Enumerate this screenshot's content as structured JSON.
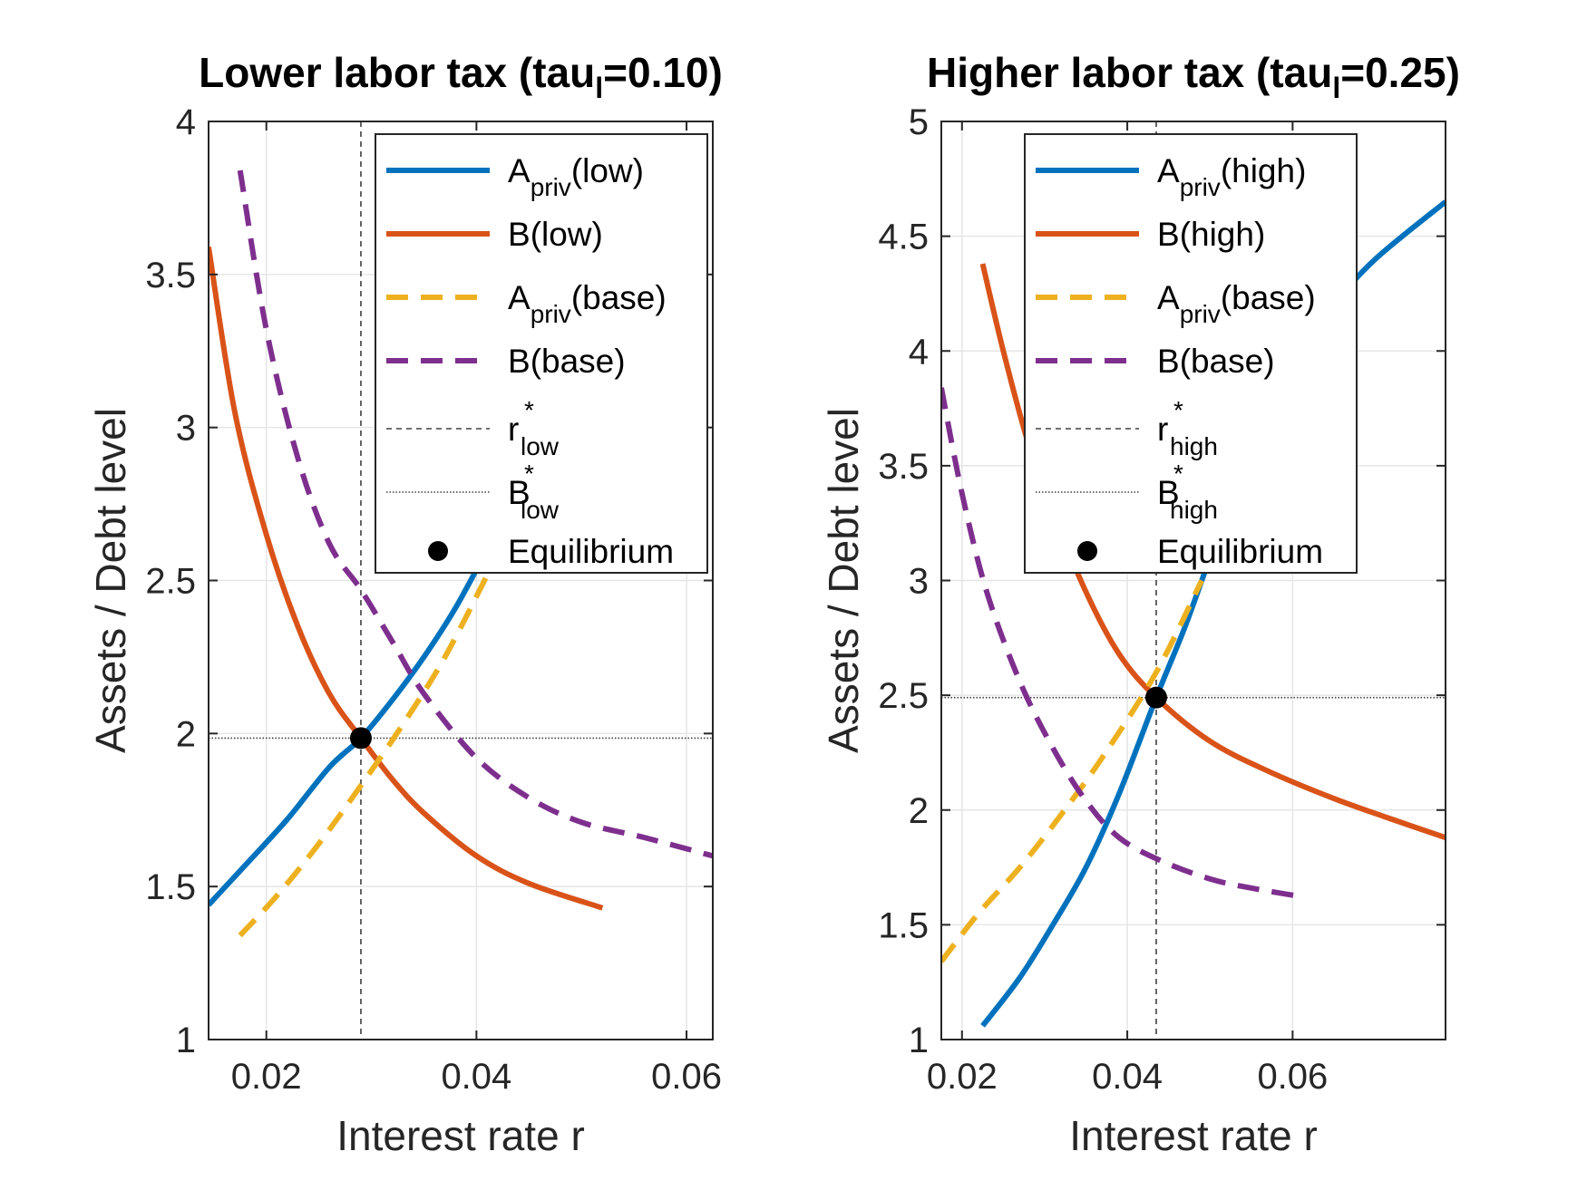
{
  "chart_data": [
    {
      "type": "line",
      "title": "Lower labor tax (tau",
      "title_sub": "l",
      "title_tail": "=0.10)",
      "xlabel": "Interest rate r",
      "ylabel": "Assets / Debt level",
      "xlim": [
        0.0145,
        0.0625
      ],
      "ylim": [
        1,
        4
      ],
      "xticks": [
        0.02,
        0.04,
        0.06
      ],
      "xtick_labels": [
        "0.02",
        "0.04",
        "0.06"
      ],
      "yticks": [
        1,
        1.5,
        2,
        2.5,
        3,
        3.5,
        4
      ],
      "ytick_labels": [
        "1",
        "1.5",
        "2",
        "2.5",
        "3",
        "3.5",
        "4"
      ],
      "grid": true,
      "legend_position": "top-right",
      "series": [
        {
          "name": "A",
          "name_sub": "priv",
          "name_tail": "(low)",
          "color": "#0072BD",
          "style": "solid",
          "x": [
            0.0145,
            0.018,
            0.022,
            0.026,
            0.029,
            0.032,
            0.035,
            0.038,
            0.041
          ],
          "y": [
            1.44,
            1.57,
            1.72,
            1.89,
            1.985,
            2.11,
            2.25,
            2.41,
            2.6
          ]
        },
        {
          "name": "B",
          "name_sub": "",
          "name_tail": "(low)",
          "color": "#D95319",
          "style": "solid",
          "x": [
            0.0145,
            0.017,
            0.02,
            0.023,
            0.026,
            0.029,
            0.032,
            0.035,
            0.04,
            0.045,
            0.052
          ],
          "y": [
            3.59,
            3.05,
            2.65,
            2.35,
            2.13,
            1.985,
            1.85,
            1.74,
            1.6,
            1.51,
            1.43
          ]
        },
        {
          "name": "A",
          "name_sub": "priv",
          "name_tail": "(base)",
          "color": "#EDB120",
          "style": "dashed",
          "x": [
            0.0175,
            0.021,
            0.025,
            0.029,
            0.033,
            0.037,
            0.0415
          ],
          "y": [
            1.34,
            1.47,
            1.64,
            1.83,
            2.03,
            2.25,
            2.55
          ]
        },
        {
          "name": "B",
          "name_sub": "",
          "name_tail": "(base)",
          "color": "#7E2F8E",
          "style": "dashed",
          "x": [
            0.0175,
            0.02,
            0.023,
            0.026,
            0.029,
            0.032,
            0.035,
            0.04,
            0.045,
            0.05,
            0.056,
            0.0625
          ],
          "y": [
            3.84,
            3.32,
            2.9,
            2.62,
            2.47,
            2.3,
            2.13,
            1.92,
            1.79,
            1.71,
            1.66,
            1.6
          ]
        }
      ],
      "r_star": 0.029,
      "b_star": 1.985,
      "equilibrium": {
        "x": 0.029,
        "y": 1.985
      },
      "ref_lines": [
        {
          "name": "r",
          "name_sup": "*",
          "name_sub": "low",
          "style": "dashed"
        },
        {
          "name": "B",
          "name_sup": "*",
          "name_sub": "low",
          "style": "dotted"
        }
      ],
      "equilibrium_label": "Equilibrium"
    },
    {
      "type": "line",
      "title": "Higher labor tax (tau",
      "title_sub": "l",
      "title_tail": "=0.25)",
      "xlabel": "Interest rate r",
      "ylabel": "Assets / Debt level",
      "xlim": [
        0.0175,
        0.0785
      ],
      "ylim": [
        1,
        5
      ],
      "xticks": [
        0.02,
        0.04,
        0.06
      ],
      "xtick_labels": [
        "0.02",
        "0.04",
        "0.06"
      ],
      "yticks": [
        1,
        1.5,
        2,
        2.5,
        3,
        3.5,
        4,
        4.5,
        5
      ],
      "ytick_labels": [
        "1",
        "1.5",
        "2",
        "2.5",
        "3",
        "3.5",
        "4",
        "4.5",
        "5"
      ],
      "grid": true,
      "legend_position": "top-right",
      "series": [
        {
          "name": "A",
          "name_sub": "priv",
          "name_tail": "(high)",
          "color": "#0072BD",
          "style": "solid",
          "x": [
            0.0225,
            0.027,
            0.031,
            0.035,
            0.039,
            0.0435,
            0.047,
            0.05,
            0.055,
            0.06,
            0.065,
            0.07,
            0.0785
          ],
          "y": [
            1.06,
            1.27,
            1.5,
            1.75,
            2.07,
            2.49,
            2.8,
            3.1,
            3.6,
            3.95,
            4.2,
            4.4,
            4.65
          ]
        },
        {
          "name": "B",
          "name_sub": "",
          "name_tail": "(high)",
          "color": "#D95319",
          "style": "solid",
          "x": [
            0.0225,
            0.025,
            0.028,
            0.031,
            0.035,
            0.039,
            0.0435,
            0.05,
            0.057,
            0.065,
            0.072,
            0.0785
          ],
          "y": [
            4.38,
            4.0,
            3.6,
            3.3,
            2.95,
            2.68,
            2.49,
            2.3,
            2.17,
            2.05,
            1.96,
            1.88
          ]
        },
        {
          "name": "A",
          "name_sub": "priv",
          "name_tail": "(base)",
          "color": "#EDB120",
          "style": "dashed",
          "x": [
            0.0175,
            0.022,
            0.027,
            0.032,
            0.037,
            0.0435,
            0.049
          ],
          "y": [
            1.34,
            1.55,
            1.75,
            1.98,
            2.23,
            2.6,
            3.0
          ]
        },
        {
          "name": "B",
          "name_sub": "",
          "name_tail": "(base)",
          "color": "#7E2F8E",
          "style": "dashed",
          "x": [
            0.0175,
            0.02,
            0.023,
            0.027,
            0.031,
            0.035,
            0.039,
            0.044,
            0.05,
            0.055,
            0.0615
          ],
          "y": [
            3.84,
            3.38,
            2.95,
            2.56,
            2.27,
            2.04,
            1.88,
            1.78,
            1.7,
            1.66,
            1.62
          ]
        }
      ],
      "r_star": 0.0435,
      "b_star": 2.49,
      "equilibrium": {
        "x": 0.0435,
        "y": 2.49
      },
      "ref_lines": [
        {
          "name": "r",
          "name_sup": "*",
          "name_sub": "high",
          "style": "dashed"
        },
        {
          "name": "B",
          "name_sup": "*",
          "name_sub": "high",
          "style": "dotted"
        }
      ],
      "equilibrium_label": "Equilibrium"
    }
  ]
}
